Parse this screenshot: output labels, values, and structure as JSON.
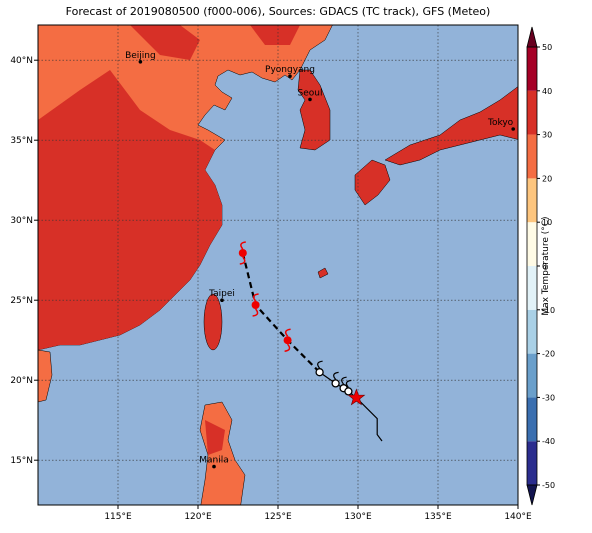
{
  "chart_data": {
    "type": "map",
    "title": "Forecast of 2019080500 (f000-006), Sources: GDACS (TC track), GFS (Meteo)",
    "xlim": [
      110,
      140
    ],
    "ylim": [
      12.2,
      42.2
    ],
    "xticks": [
      {
        "value": 115,
        "label": "115°E"
      },
      {
        "value": 120,
        "label": "120°E"
      },
      {
        "value": 125,
        "label": "125°E"
      },
      {
        "value": 130,
        "label": "130°E"
      },
      {
        "value": 135,
        "label": "135°E"
      },
      {
        "value": 140,
        "label": "140°E"
      }
    ],
    "yticks": [
      {
        "value": 15,
        "label": "15°N"
      },
      {
        "value": 20,
        "label": "20°N"
      },
      {
        "value": 25,
        "label": "25°N"
      },
      {
        "value": 30,
        "label": "30°N"
      },
      {
        "value": 35,
        "label": "35°N"
      },
      {
        "value": 40,
        "label": "40°N"
      }
    ],
    "grid": true,
    "cities": [
      {
        "name": "Beijing",
        "lon": 116.4,
        "lat": 39.9
      },
      {
        "name": "Pyongyang",
        "lon": 125.75,
        "lat": 39.0
      },
      {
        "name": "Seoul",
        "lon": 127.0,
        "lat": 37.55
      },
      {
        "name": "Tokyo",
        "lon": 139.7,
        "lat": 35.7
      },
      {
        "name": "Taipei",
        "lon": 121.5,
        "lat": 25.0
      },
      {
        "name": "Manila",
        "lon": 121.0,
        "lat": 14.6
      }
    ],
    "forecast_track": {
      "lon": [
        122.8,
        123.6,
        125.6,
        127.6
      ],
      "lat": [
        27.95,
        24.7,
        22.5,
        20.5
      ],
      "symbol": [
        "storm",
        "storm",
        "storm",
        null
      ]
    },
    "track": {
      "lon": [
        127.6,
        128.6,
        129.1,
        129.4,
        129.9,
        131.2,
        131.2,
        131.5
      ],
      "lat": [
        20.5,
        19.8,
        19.5,
        19.3,
        18.9,
        17.6,
        16.6,
        16.2
      ],
      "symbol": [
        "circle",
        "circle",
        "circle",
        "circle",
        "star",
        null,
        null,
        null
      ]
    },
    "colorbar": {
      "label": "Max Temperature (°C)",
      "lim": [
        -50,
        50
      ],
      "ticks": [
        -50,
        -40,
        -30,
        -20,
        -10,
        0,
        10,
        20,
        30,
        40,
        50
      ],
      "colors": [
        "#2b2d8e",
        "#3a6fb0",
        "#6a9fcb",
        "#a9d0e6",
        "#e2f2f8",
        "#fffbe6",
        "#fdc57e",
        "#f46d43",
        "#d73027",
        "#a50026"
      ]
    }
  }
}
